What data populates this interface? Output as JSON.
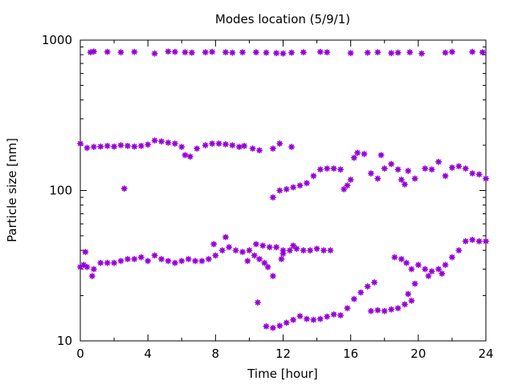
{
  "chart_data": {
    "type": "scatter",
    "title": "Modes location (5/9/1)",
    "xlabel": "Time [hour]",
    "ylabel": "Particle size [nm]",
    "xlim": [
      0,
      24
    ],
    "ylim": [
      10,
      1000
    ],
    "yscale": "log",
    "x_ticks": [
      0,
      4,
      8,
      12,
      16,
      20,
      24
    ],
    "y_ticks": [
      10,
      100,
      1000
    ],
    "grid": false,
    "marker": "star",
    "color": "#9400d3",
    "series": [
      {
        "points": [
          [
            0.6,
            830
          ],
          [
            0.8,
            840
          ],
          [
            1.6,
            835
          ],
          [
            2.4,
            830
          ],
          [
            3.2,
            835
          ],
          [
            4.4,
            815
          ],
          [
            5.2,
            840
          ],
          [
            5.6,
            835
          ],
          [
            6.2,
            830
          ],
          [
            6.6,
            825
          ],
          [
            7.4,
            830
          ],
          [
            7.8,
            835
          ],
          [
            8.6,
            830
          ],
          [
            9.0,
            825
          ],
          [
            9.6,
            830
          ],
          [
            10.4,
            830
          ],
          [
            11.0,
            825
          ],
          [
            11.6,
            820
          ],
          [
            12.0,
            815
          ],
          [
            12.5,
            825
          ],
          [
            13.2,
            830
          ],
          [
            14.2,
            835
          ],
          [
            14.6,
            830
          ],
          [
            16.0,
            820
          ],
          [
            17.0,
            825
          ],
          [
            17.6,
            830
          ],
          [
            18.4,
            820
          ],
          [
            18.8,
            825
          ],
          [
            19.5,
            830
          ],
          [
            20.2,
            815
          ],
          [
            21.6,
            825
          ],
          [
            22.0,
            835
          ],
          [
            23.2,
            835
          ],
          [
            23.8,
            830
          ],
          [
            0.0,
            205
          ],
          [
            0.4,
            192
          ],
          [
            0.8,
            195
          ],
          [
            1.2,
            196
          ],
          [
            1.6,
            198
          ],
          [
            2.0,
            196
          ],
          [
            2.4,
            200
          ],
          [
            2.8,
            198
          ],
          [
            3.2,
            196
          ],
          [
            3.6,
            198
          ],
          [
            4.0,
            202
          ],
          [
            4.4,
            215
          ],
          [
            4.8,
            212
          ],
          [
            5.2,
            208
          ],
          [
            5.6,
            205
          ],
          [
            6.0,
            195
          ],
          [
            6.2,
            172
          ],
          [
            6.5,
            168
          ],
          [
            6.9,
            190
          ],
          [
            7.4,
            200
          ],
          [
            7.8,
            205
          ],
          [
            8.2,
            205
          ],
          [
            8.6,
            203
          ],
          [
            9.0,
            200
          ],
          [
            9.4,
            195
          ],
          [
            9.7,
            198
          ],
          [
            10.2,
            190
          ],
          [
            10.6,
            185
          ],
          [
            11.4,
            190
          ],
          [
            11.8,
            205
          ],
          [
            12.5,
            195
          ],
          [
            2.6,
            103
          ],
          [
            11.4,
            90
          ],
          [
            11.8,
            100
          ],
          [
            12.2,
            102
          ],
          [
            12.6,
            105
          ],
          [
            13.0,
            108
          ],
          [
            13.4,
            112
          ],
          [
            13.8,
            125
          ],
          [
            14.2,
            138
          ],
          [
            14.6,
            140
          ],
          [
            15.0,
            140
          ],
          [
            15.4,
            138
          ],
          [
            15.6,
            102
          ],
          [
            15.8,
            108
          ],
          [
            16.0,
            118
          ],
          [
            16.2,
            165
          ],
          [
            16.4,
            178
          ],
          [
            16.8,
            175
          ],
          [
            17.2,
            130
          ],
          [
            17.6,
            120
          ],
          [
            17.8,
            172
          ],
          [
            18.0,
            140
          ],
          [
            18.4,
            150
          ],
          [
            18.8,
            138
          ],
          [
            19.0,
            118
          ],
          [
            19.2,
            110
          ],
          [
            19.4,
            135
          ],
          [
            19.8,
            120
          ],
          [
            20.4,
            140
          ],
          [
            20.8,
            138
          ],
          [
            21.2,
            155
          ],
          [
            21.6,
            125
          ],
          [
            22.0,
            142
          ],
          [
            22.4,
            145
          ],
          [
            22.8,
            140
          ],
          [
            23.2,
            130
          ],
          [
            23.6,
            128
          ],
          [
            24.0,
            120
          ],
          [
            0.0,
            31
          ],
          [
            0.2,
            32
          ],
          [
            0.4,
            31
          ],
          [
            0.8,
            30
          ],
          [
            1.2,
            33
          ],
          [
            1.6,
            33
          ],
          [
            2.0,
            33
          ],
          [
            2.4,
            34
          ],
          [
            2.8,
            35
          ],
          [
            3.2,
            35
          ],
          [
            3.6,
            36
          ],
          [
            4.0,
            34
          ],
          [
            4.4,
            37
          ],
          [
            4.8,
            35
          ],
          [
            5.2,
            34
          ],
          [
            5.6,
            33
          ],
          [
            6.0,
            34
          ],
          [
            6.4,
            35
          ],
          [
            6.8,
            34
          ],
          [
            7.2,
            34
          ],
          [
            7.6,
            35
          ],
          [
            8.0,
            37
          ],
          [
            8.4,
            40
          ],
          [
            8.8,
            42
          ],
          [
            9.2,
            40
          ],
          [
            9.6,
            39
          ],
          [
            10.0,
            40
          ],
          [
            10.4,
            44
          ],
          [
            10.8,
            43
          ],
          [
            11.2,
            42
          ],
          [
            11.6,
            42
          ],
          [
            12.0,
            40
          ],
          [
            12.4,
            40
          ],
          [
            12.8,
            41
          ],
          [
            13.2,
            40
          ],
          [
            13.6,
            40
          ],
          [
            14.0,
            41
          ],
          [
            14.4,
            40
          ],
          [
            14.8,
            40
          ],
          [
            0.3,
            39
          ],
          [
            0.7,
            27
          ],
          [
            7.9,
            44
          ],
          [
            8.6,
            49
          ],
          [
            10.3,
            37
          ],
          [
            10.6,
            35
          ],
          [
            10.9,
            33
          ],
          [
            11.4,
            27
          ],
          [
            12.0,
            38
          ],
          [
            12.6,
            43
          ],
          [
            9.9,
            34
          ],
          [
            11.1,
            31
          ],
          [
            11.9,
            35
          ],
          [
            10.5,
            18
          ],
          [
            11.0,
            12.5
          ],
          [
            11.4,
            12.2
          ],
          [
            11.8,
            12.6
          ],
          [
            12.2,
            13.2
          ],
          [
            12.6,
            13.8
          ],
          [
            13.0,
            14.6
          ],
          [
            13.4,
            14.0
          ],
          [
            13.8,
            13.8
          ],
          [
            14.2,
            14.0
          ],
          [
            14.6,
            14.5
          ],
          [
            15.0,
            15.0
          ],
          [
            15.4,
            14.8
          ],
          [
            15.8,
            16.5
          ],
          [
            16.2,
            19.0
          ],
          [
            16.6,
            21.0
          ],
          [
            17.0,
            23.0
          ],
          [
            17.4,
            24.5
          ],
          [
            17.2,
            15.8
          ],
          [
            17.6,
            16.0
          ],
          [
            18.0,
            15.8
          ],
          [
            18.4,
            16.2
          ],
          [
            18.8,
            16.5
          ],
          [
            19.2,
            17.5
          ],
          [
            19.4,
            20.5
          ],
          [
            19.6,
            18.5
          ],
          [
            18.6,
            36
          ],
          [
            19.0,
            35
          ],
          [
            19.3,
            33
          ],
          [
            19.6,
            30
          ],
          [
            20.0,
            32
          ],
          [
            20.4,
            30
          ],
          [
            20.8,
            29
          ],
          [
            21.2,
            30
          ],
          [
            21.6,
            32
          ],
          [
            22.0,
            36
          ],
          [
            22.4,
            40
          ],
          [
            22.8,
            46
          ],
          [
            23.2,
            47
          ],
          [
            23.6,
            46
          ],
          [
            24.0,
            46
          ],
          [
            19.8,
            24
          ],
          [
            20.6,
            27
          ],
          [
            21.4,
            28
          ]
        ]
      }
    ]
  }
}
